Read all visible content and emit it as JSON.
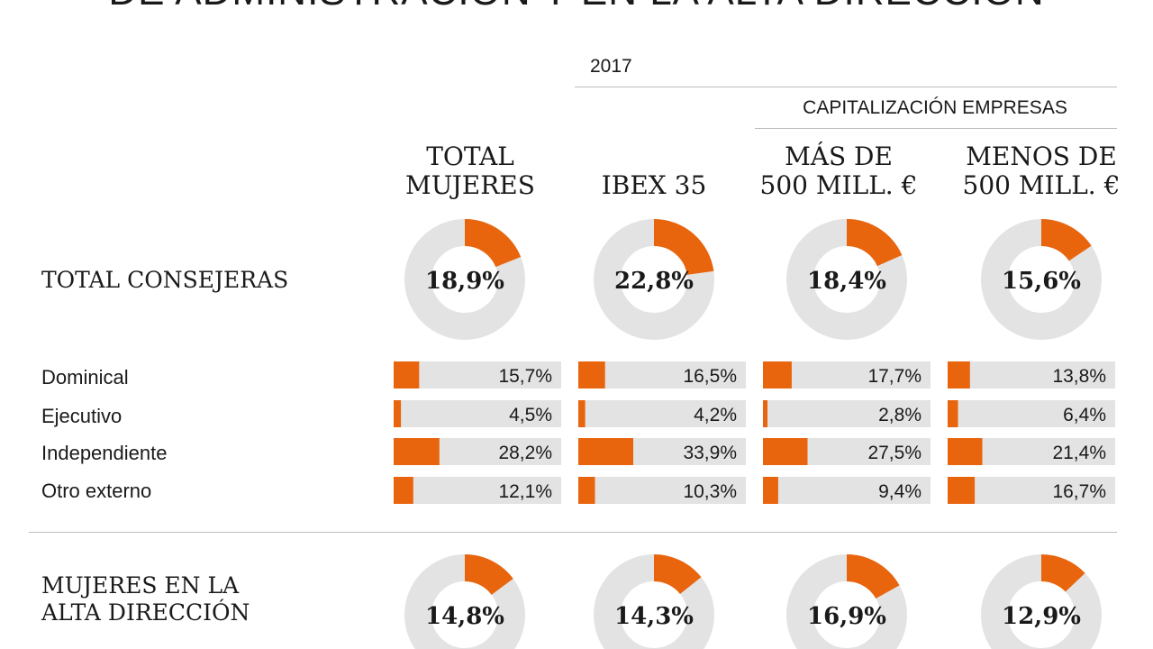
{
  "title": "DE ADMINISTRACIÓN Y EN LA ALTA DIRECCIÓN",
  "year": "2017",
  "group_header": "CAPITALIZACIÓN EMPRESAS",
  "columns": [
    {
      "line1": "TOTAL",
      "line2": "MUJERES"
    },
    {
      "line1": "",
      "line2": "IBEX 35"
    },
    {
      "line1": "MÁS DE",
      "line2": "500 MILL. €"
    },
    {
      "line1": "MENOS DE",
      "line2": "500 MILL. €"
    }
  ],
  "rows": {
    "total_consejeras": "TOTAL CONSEJERAS",
    "categories": [
      "Dominical",
      "Ejecutivo",
      "Independiente",
      "Otro externo"
    ],
    "alta_direccion_line1": "MUJERES EN LA",
    "alta_direccion_line2": "ALTA DIRECCIÓN"
  },
  "colors": {
    "accent": "#e8650e",
    "track": "#e3e3e3",
    "rule": "#bdbdbd"
  },
  "chart_data": [
    {
      "type": "pie",
      "title": "TOTAL CONSEJERAS",
      "categories": [
        "TOTAL MUJERES",
        "IBEX 35",
        "MÁS DE 500 MILL. €",
        "MENOS DE 500 MILL. €"
      ],
      "values": [
        18.9,
        22.8,
        18.4,
        15.6
      ],
      "labels": [
        "18,9%",
        "22,8%",
        "18,4%",
        "15,6%"
      ]
    },
    {
      "type": "bar",
      "categories": [
        "Dominical",
        "Ejecutivo",
        "Independiente",
        "Otro externo"
      ],
      "series": [
        {
          "name": "TOTAL MUJERES",
          "values": [
            15.7,
            4.5,
            28.2,
            12.1
          ],
          "labels": [
            "15,7%",
            "4,5%",
            "28,2%",
            "12,1%"
          ]
        },
        {
          "name": "IBEX 35",
          "values": [
            16.5,
            4.2,
            33.9,
            10.3
          ],
          "labels": [
            "16,5%",
            "4,2%",
            "33,9%",
            "10,3%"
          ]
        },
        {
          "name": "MÁS DE 500 MILL. €",
          "values": [
            17.7,
            2.8,
            27.5,
            9.4
          ],
          "labels": [
            "17,7%",
            "2,8%",
            "27,5%",
            "9,4%"
          ]
        },
        {
          "name": "MENOS DE 500 MILL. €",
          "values": [
            13.8,
            6.4,
            21.4,
            16.7
          ],
          "labels": [
            "13,8%",
            "6,4%",
            "21,4%",
            "16,7%"
          ]
        }
      ],
      "ylim": [
        0,
        100
      ]
    },
    {
      "type": "pie",
      "title": "MUJERES EN LA ALTA DIRECCIÓN",
      "categories": [
        "TOTAL MUJERES",
        "IBEX 35",
        "MÁS DE 500 MILL. €",
        "MENOS DE 500 MILL. €"
      ],
      "values": [
        14.8,
        14.3,
        16.9,
        12.9
      ],
      "labels": [
        "14,8%",
        "14,3%",
        "16,9%",
        "12,9%"
      ]
    }
  ]
}
